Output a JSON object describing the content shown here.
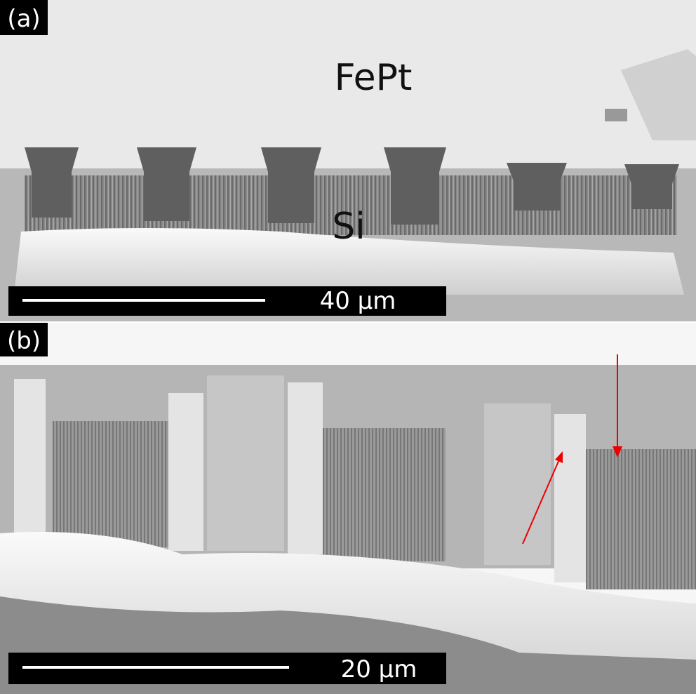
{
  "panels": [
    {
      "label": "(a)",
      "annotations": [
        "FePt",
        "Si"
      ],
      "scale_bar": "40 μm"
    },
    {
      "label": "(b)",
      "scale_bar": "20 μm"
    }
  ]
}
